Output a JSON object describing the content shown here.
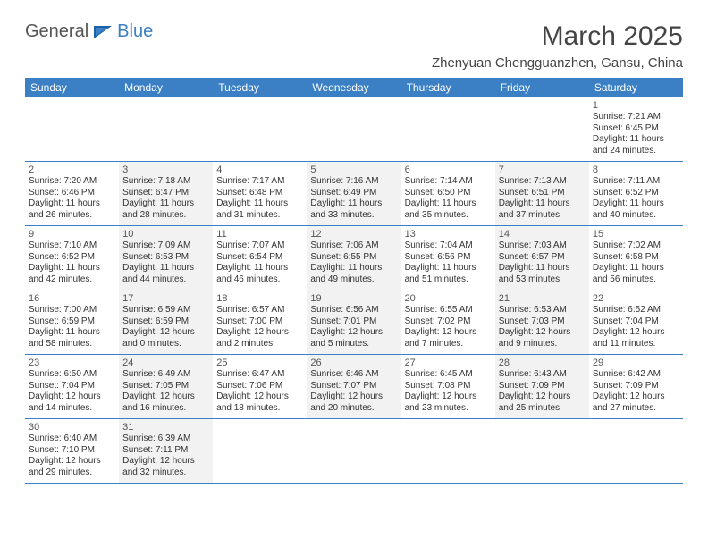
{
  "logo": {
    "text_a": "General",
    "text_b": "Blue"
  },
  "header": {
    "month_title": "March 2025",
    "location": "Zhenyuan Chengguanzhen, Gansu, China"
  },
  "colors": {
    "header_bg": "#3b7fc4",
    "header_fg": "#ffffff",
    "cell_border": "#3b7fc4",
    "shaded_bg": "#f2f2f2",
    "text": "#333333",
    "logo_gray": "#555555",
    "logo_blue": "#3b7fc4"
  },
  "weekdays": [
    "Sunday",
    "Monday",
    "Tuesday",
    "Wednesday",
    "Thursday",
    "Friday",
    "Saturday"
  ],
  "weeks": [
    [
      {
        "empty": true
      },
      {
        "empty": true
      },
      {
        "empty": true
      },
      {
        "empty": true
      },
      {
        "empty": true
      },
      {
        "empty": true
      },
      {
        "n": "1",
        "sunrise": "Sunrise: 7:21 AM",
        "sunset": "Sunset: 6:45 PM",
        "daylight1": "Daylight: 11 hours",
        "daylight2": "and 24 minutes.",
        "shaded": false
      }
    ],
    [
      {
        "n": "2",
        "sunrise": "Sunrise: 7:20 AM",
        "sunset": "Sunset: 6:46 PM",
        "daylight1": "Daylight: 11 hours",
        "daylight2": "and 26 minutes.",
        "shaded": false
      },
      {
        "n": "3",
        "sunrise": "Sunrise: 7:18 AM",
        "sunset": "Sunset: 6:47 PM",
        "daylight1": "Daylight: 11 hours",
        "daylight2": "and 28 minutes.",
        "shaded": true
      },
      {
        "n": "4",
        "sunrise": "Sunrise: 7:17 AM",
        "sunset": "Sunset: 6:48 PM",
        "daylight1": "Daylight: 11 hours",
        "daylight2": "and 31 minutes.",
        "shaded": false
      },
      {
        "n": "5",
        "sunrise": "Sunrise: 7:16 AM",
        "sunset": "Sunset: 6:49 PM",
        "daylight1": "Daylight: 11 hours",
        "daylight2": "and 33 minutes.",
        "shaded": true
      },
      {
        "n": "6",
        "sunrise": "Sunrise: 7:14 AM",
        "sunset": "Sunset: 6:50 PM",
        "daylight1": "Daylight: 11 hours",
        "daylight2": "and 35 minutes.",
        "shaded": false
      },
      {
        "n": "7",
        "sunrise": "Sunrise: 7:13 AM",
        "sunset": "Sunset: 6:51 PM",
        "daylight1": "Daylight: 11 hours",
        "daylight2": "and 37 minutes.",
        "shaded": true
      },
      {
        "n": "8",
        "sunrise": "Sunrise: 7:11 AM",
        "sunset": "Sunset: 6:52 PM",
        "daylight1": "Daylight: 11 hours",
        "daylight2": "and 40 minutes.",
        "shaded": false
      }
    ],
    [
      {
        "n": "9",
        "sunrise": "Sunrise: 7:10 AM",
        "sunset": "Sunset: 6:52 PM",
        "daylight1": "Daylight: 11 hours",
        "daylight2": "and 42 minutes.",
        "shaded": false
      },
      {
        "n": "10",
        "sunrise": "Sunrise: 7:09 AM",
        "sunset": "Sunset: 6:53 PM",
        "daylight1": "Daylight: 11 hours",
        "daylight2": "and 44 minutes.",
        "shaded": true
      },
      {
        "n": "11",
        "sunrise": "Sunrise: 7:07 AM",
        "sunset": "Sunset: 6:54 PM",
        "daylight1": "Daylight: 11 hours",
        "daylight2": "and 46 minutes.",
        "shaded": false
      },
      {
        "n": "12",
        "sunrise": "Sunrise: 7:06 AM",
        "sunset": "Sunset: 6:55 PM",
        "daylight1": "Daylight: 11 hours",
        "daylight2": "and 49 minutes.",
        "shaded": true
      },
      {
        "n": "13",
        "sunrise": "Sunrise: 7:04 AM",
        "sunset": "Sunset: 6:56 PM",
        "daylight1": "Daylight: 11 hours",
        "daylight2": "and 51 minutes.",
        "shaded": false
      },
      {
        "n": "14",
        "sunrise": "Sunrise: 7:03 AM",
        "sunset": "Sunset: 6:57 PM",
        "daylight1": "Daylight: 11 hours",
        "daylight2": "and 53 minutes.",
        "shaded": true
      },
      {
        "n": "15",
        "sunrise": "Sunrise: 7:02 AM",
        "sunset": "Sunset: 6:58 PM",
        "daylight1": "Daylight: 11 hours",
        "daylight2": "and 56 minutes.",
        "shaded": false
      }
    ],
    [
      {
        "n": "16",
        "sunrise": "Sunrise: 7:00 AM",
        "sunset": "Sunset: 6:59 PM",
        "daylight1": "Daylight: 11 hours",
        "daylight2": "and 58 minutes.",
        "shaded": false
      },
      {
        "n": "17",
        "sunrise": "Sunrise: 6:59 AM",
        "sunset": "Sunset: 6:59 PM",
        "daylight1": "Daylight: 12 hours",
        "daylight2": "and 0 minutes.",
        "shaded": true
      },
      {
        "n": "18",
        "sunrise": "Sunrise: 6:57 AM",
        "sunset": "Sunset: 7:00 PM",
        "daylight1": "Daylight: 12 hours",
        "daylight2": "and 2 minutes.",
        "shaded": false
      },
      {
        "n": "19",
        "sunrise": "Sunrise: 6:56 AM",
        "sunset": "Sunset: 7:01 PM",
        "daylight1": "Daylight: 12 hours",
        "daylight2": "and 5 minutes.",
        "shaded": true
      },
      {
        "n": "20",
        "sunrise": "Sunrise: 6:55 AM",
        "sunset": "Sunset: 7:02 PM",
        "daylight1": "Daylight: 12 hours",
        "daylight2": "and 7 minutes.",
        "shaded": false
      },
      {
        "n": "21",
        "sunrise": "Sunrise: 6:53 AM",
        "sunset": "Sunset: 7:03 PM",
        "daylight1": "Daylight: 12 hours",
        "daylight2": "and 9 minutes.",
        "shaded": true
      },
      {
        "n": "22",
        "sunrise": "Sunrise: 6:52 AM",
        "sunset": "Sunset: 7:04 PM",
        "daylight1": "Daylight: 12 hours",
        "daylight2": "and 11 minutes.",
        "shaded": false
      }
    ],
    [
      {
        "n": "23",
        "sunrise": "Sunrise: 6:50 AM",
        "sunset": "Sunset: 7:04 PM",
        "daylight1": "Daylight: 12 hours",
        "daylight2": "and 14 minutes.",
        "shaded": false
      },
      {
        "n": "24",
        "sunrise": "Sunrise: 6:49 AM",
        "sunset": "Sunset: 7:05 PM",
        "daylight1": "Daylight: 12 hours",
        "daylight2": "and 16 minutes.",
        "shaded": true
      },
      {
        "n": "25",
        "sunrise": "Sunrise: 6:47 AM",
        "sunset": "Sunset: 7:06 PM",
        "daylight1": "Daylight: 12 hours",
        "daylight2": "and 18 minutes.",
        "shaded": false
      },
      {
        "n": "26",
        "sunrise": "Sunrise: 6:46 AM",
        "sunset": "Sunset: 7:07 PM",
        "daylight1": "Daylight: 12 hours",
        "daylight2": "and 20 minutes.",
        "shaded": true
      },
      {
        "n": "27",
        "sunrise": "Sunrise: 6:45 AM",
        "sunset": "Sunset: 7:08 PM",
        "daylight1": "Daylight: 12 hours",
        "daylight2": "and 23 minutes.",
        "shaded": false
      },
      {
        "n": "28",
        "sunrise": "Sunrise: 6:43 AM",
        "sunset": "Sunset: 7:09 PM",
        "daylight1": "Daylight: 12 hours",
        "daylight2": "and 25 minutes.",
        "shaded": true
      },
      {
        "n": "29",
        "sunrise": "Sunrise: 6:42 AM",
        "sunset": "Sunset: 7:09 PM",
        "daylight1": "Daylight: 12 hours",
        "daylight2": "and 27 minutes.",
        "shaded": false
      }
    ],
    [
      {
        "n": "30",
        "sunrise": "Sunrise: 6:40 AM",
        "sunset": "Sunset: 7:10 PM",
        "daylight1": "Daylight: 12 hours",
        "daylight2": "and 29 minutes.",
        "shaded": false
      },
      {
        "n": "31",
        "sunrise": "Sunrise: 6:39 AM",
        "sunset": "Sunset: 7:11 PM",
        "daylight1": "Daylight: 12 hours",
        "daylight2": "and 32 minutes.",
        "shaded": true
      },
      {
        "empty": true
      },
      {
        "empty": true
      },
      {
        "empty": true
      },
      {
        "empty": true
      },
      {
        "empty": true
      }
    ]
  ]
}
